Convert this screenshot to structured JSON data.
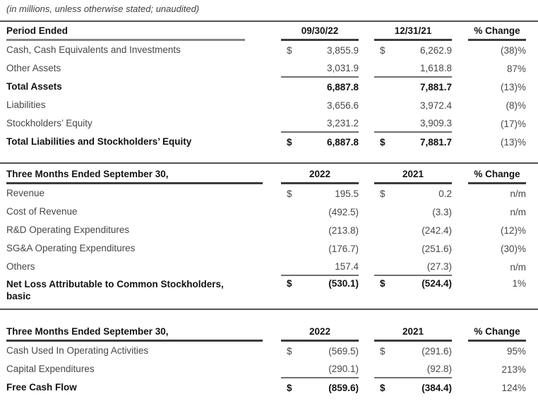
{
  "subtitle": "(in millions, unless otherwise stated; unaudited)",
  "colors": {
    "text": "#47474a",
    "text_strong": "#121214",
    "rule_dark": "#3c3c3f",
    "rule_gray_header": "#84868a",
    "rule_thin": "#6e6f72",
    "divider": "#525356"
  },
  "tables": [
    {
      "name": "balance-sheet",
      "header": {
        "label": "Period Ended",
        "col1": "09/30/22",
        "col2": "12/31/21",
        "col3": "% Change"
      },
      "rows": [
        {
          "label": "Cash, Cash Equivalents and Investments",
          "cur1": "$",
          "val1": "3,855.9",
          "cur2": "$",
          "val2": "6,262.9",
          "chg": "(38)%"
        },
        {
          "label": "Other Assets",
          "val1": "3,031.9",
          "val2": "1,618.8",
          "chg": "87%"
        },
        {
          "label": "Total Assets",
          "val1": "6,887.8",
          "val2": "7,881.7",
          "chg": "(13)%"
        },
        {
          "label": "Liabilities",
          "val1": "3,656.6",
          "val2": "3,972.4",
          "chg": "(8)%"
        },
        {
          "label": "Stockholders’ Equity",
          "val1": "3,231.2",
          "val2": "3,909.3",
          "chg": "(17)%"
        },
        {
          "label": "Total Liabilities and Stockholders’ Equity",
          "cur1": "$",
          "val1": "6,887.8",
          "cur2": "$",
          "val2": "7,881.7",
          "chg": "(13)%"
        }
      ]
    },
    {
      "name": "quarterly-operating-results",
      "header": {
        "label": "Three Months Ended September 30,",
        "col1": "2022",
        "col2": "2021",
        "col3": "% Change"
      },
      "rows": [
        {
          "label": "Revenue",
          "cur1": "$",
          "val1": "195.5",
          "cur2": "$",
          "val2": "0.2",
          "chg": "n/m"
        },
        {
          "label": "Cost of Revenue",
          "val1": "(492.5)",
          "val2": "(3.3)",
          "chg": "n/m"
        },
        {
          "label": "R&D Operating Expenditures",
          "val1": "(213.8)",
          "val2": "(242.4)",
          "chg": "(12)%"
        },
        {
          "label": "SG&A Operating Expenditures",
          "val1": "(176.7)",
          "val2": "(251.6)",
          "chg": "(30)%"
        },
        {
          "label": "Others",
          "val1": "157.4",
          "val2": "(27.3)",
          "chg": "n/m"
        },
        {
          "label": "Net Loss Attributable to Common Stockholders,",
          "label2": "basic",
          "cur1": "$",
          "val1": "(530.1)",
          "cur2": "$",
          "val2": "(524.4)",
          "chg": "1%"
        }
      ]
    },
    {
      "name": "free-cash-flow",
      "header": {
        "label": "Three Months Ended September 30,",
        "col1": "2022",
        "col2": "2021",
        "col3": "% Change"
      },
      "rows": [
        {
          "label": "Cash Used In Operating Activities",
          "cur1": "$",
          "val1": "(569.5)",
          "cur2": "$",
          "val2": "(291.6)",
          "chg": "95%"
        },
        {
          "label": "Capital Expenditures",
          "val1": "(290.1)",
          "val2": "(92.8)",
          "chg": "213%"
        },
        {
          "label": "Free Cash Flow",
          "cur1": "$",
          "val1": "(859.6)",
          "cur2": "$",
          "val2": "(384.4)",
          "chg": "124%"
        }
      ]
    }
  ]
}
